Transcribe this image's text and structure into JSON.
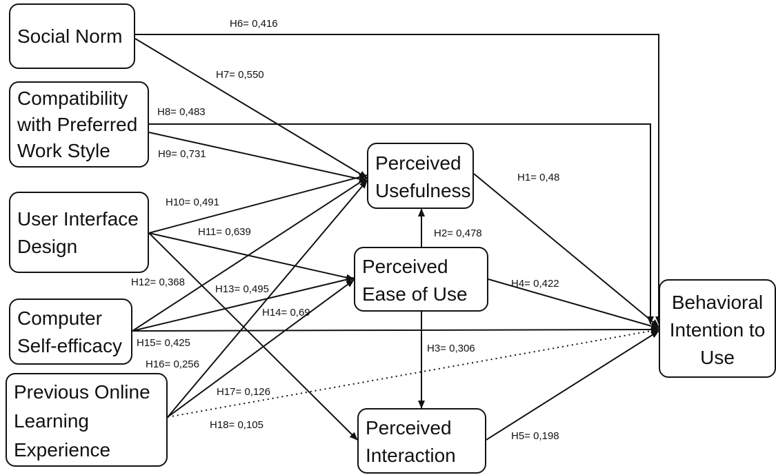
{
  "nodes": {
    "social_norm": {
      "lines": [
        "Social Norm"
      ]
    },
    "compatibility": {
      "lines": [
        "Compatibility",
        "with Preferred",
        "Work Style"
      ]
    },
    "ui_design": {
      "lines": [
        "User Interface",
        "Design"
      ]
    },
    "self_efficacy": {
      "lines": [
        "Computer",
        "Self-efficacy"
      ]
    },
    "prev_experience": {
      "lines": [
        "Previous Online",
        "Learning",
        "Experience"
      ]
    },
    "usefulness": {
      "lines": [
        "Perceived",
        "Usefulness"
      ]
    },
    "ease_of_use": {
      "lines": [
        "Perceived",
        "Ease of Use"
      ]
    },
    "interaction": {
      "lines": [
        "Perceived",
        "Interaction"
      ]
    },
    "intention": {
      "lines": [
        "Behavioral",
        "Intention to",
        "Use"
      ]
    }
  },
  "edges": [
    {
      "id": "h1",
      "label": "H1= 0,48"
    },
    {
      "id": "h2",
      "label": "H2= 0,478"
    },
    {
      "id": "h3",
      "label": "H3= 0,306"
    },
    {
      "id": "h4",
      "label": "H4= 0,422"
    },
    {
      "id": "h5",
      "label": "H5= 0,198"
    },
    {
      "id": "h6",
      "label": "H6= 0,416"
    },
    {
      "id": "h7",
      "label": "H7= 0,550"
    },
    {
      "id": "h8",
      "label": "H8= 0,483"
    },
    {
      "id": "h9",
      "label": "H9= 0,731"
    },
    {
      "id": "h10",
      "label": "H10= 0,491"
    },
    {
      "id": "h11",
      "label": "H11= 0,639"
    },
    {
      "id": "h12",
      "label": "H12= 0,368"
    },
    {
      "id": "h13",
      "label": "H13= 0,495"
    },
    {
      "id": "h14",
      "label": "H14= 0,69"
    },
    {
      "id": "h15",
      "label": "H15= 0,425"
    },
    {
      "id": "h16",
      "label": "H16= 0,256"
    },
    {
      "id": "h17",
      "label": "H17= 0,126"
    },
    {
      "id": "h18",
      "label": "H18= 0,105"
    }
  ]
}
